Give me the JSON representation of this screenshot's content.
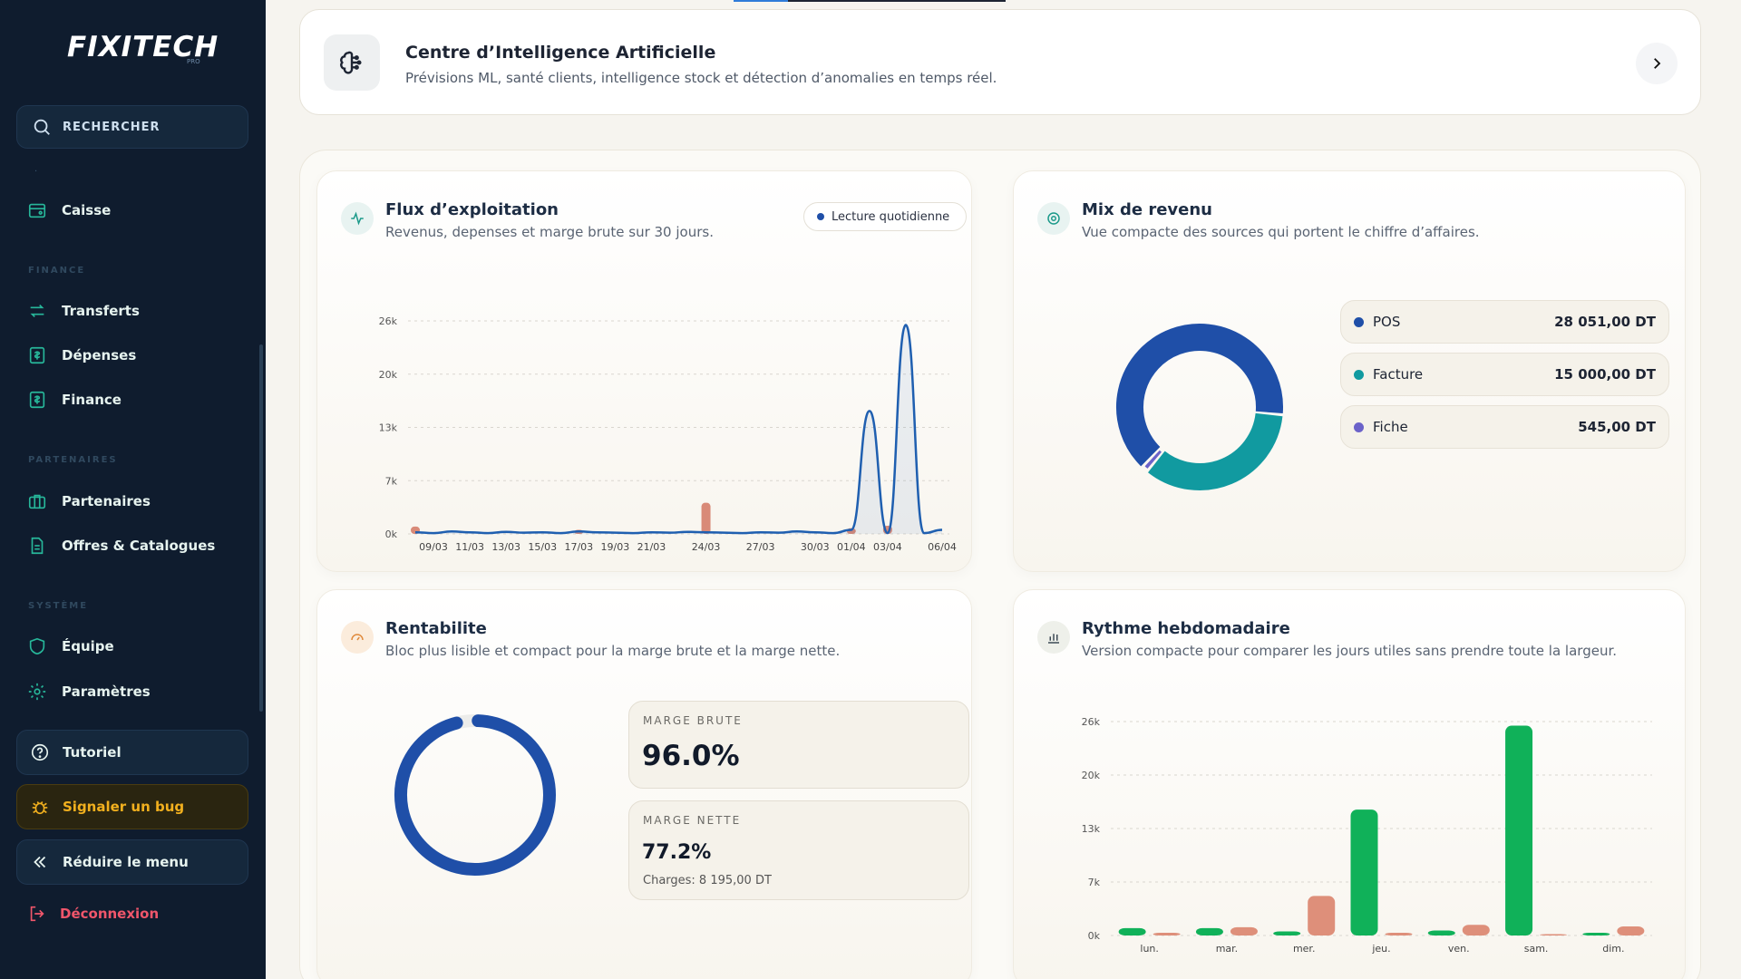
{
  "brand": {
    "name": "FIXITECH",
    "suffix": "PRO"
  },
  "sidebar": {
    "search_label": "RECHERCHER",
    "items": [
      {
        "label": "Caisse",
        "icon": "cash-register-icon"
      },
      {
        "section": "FINANCE"
      },
      {
        "label": "Transferts",
        "icon": "transfer-icon"
      },
      {
        "label": "Dépenses",
        "icon": "expense-icon"
      },
      {
        "label": "Finance",
        "icon": "finance-icon"
      },
      {
        "section": "PARTENAIRES"
      },
      {
        "label": "Partenaires",
        "icon": "briefcase-icon"
      },
      {
        "label": "Offres & Catalogues",
        "icon": "document-icon"
      },
      {
        "section": "SYSTÈME"
      },
      {
        "label": "Équipe",
        "icon": "shield-icon"
      },
      {
        "label": "Paramètres",
        "icon": "gear-icon"
      }
    ],
    "tutorial": "Tutoriel",
    "bug": "Signaler un bug",
    "collapse": "Réduire le menu",
    "logout": "Déconnexion"
  },
  "ai_center": {
    "title": "Centre d’Intelligence Artificielle",
    "subtitle": "Prévisions ML, santé clients, intelligence stock et détection d’anomalies en temps réel."
  },
  "flux": {
    "title": "Flux d’exploitation",
    "subtitle": "Revenus, depenses et marge brute sur 30 jours.",
    "badge": "Lecture quotidienne"
  },
  "mix": {
    "title": "Mix de revenu",
    "subtitle": "Vue compacte des sources qui portent le chiffre d’affaires.",
    "legend": [
      {
        "name": "POS",
        "value": "28 051,00 DT",
        "color": "#1f4fa8"
      },
      {
        "name": "Facture",
        "value": "15 000,00 DT",
        "color": "#119aa0"
      },
      {
        "name": "Fiche",
        "value": "545,00 DT",
        "color": "#6b62c9"
      }
    ]
  },
  "rentabilite": {
    "title": "Rentabilite",
    "subtitle": "Bloc plus lisible et compact pour la marge brute et la marge nette.",
    "marge_brute_label": "MARGE BRUTE",
    "marge_brute_value": "96.0%",
    "marge_nette_label": "MARGE NETTE",
    "marge_nette_value": "77.2%",
    "charges": "Charges: 8 195,00 DT",
    "ring_fraction": 0.96
  },
  "rythme": {
    "title": "Rythme hebdomadaire",
    "subtitle": "Version compacte pour comparer les jours utiles sans prendre toute la largeur."
  },
  "chart_data": [
    {
      "type": "line",
      "title": "Flux d’exploitation",
      "x_ticks": [
        "09/03",
        "11/03",
        "13/03",
        "15/03",
        "17/03",
        "19/03",
        "21/03",
        "24/03",
        "27/03",
        "30/03",
        "01/04",
        "03/04",
        "06/04"
      ],
      "y_ticks": [
        "0k",
        "7k",
        "13k",
        "20k",
        "26k"
      ],
      "ylim": [
        0,
        26000
      ],
      "dates": [
        "08/03",
        "09/03",
        "10/03",
        "11/03",
        "12/03",
        "13/03",
        "14/03",
        "15/03",
        "16/03",
        "17/03",
        "18/03",
        "19/03",
        "20/03",
        "21/03",
        "22/03",
        "23/03",
        "24/03",
        "25/03",
        "26/03",
        "27/03",
        "28/03",
        "29/03",
        "30/03",
        "31/03",
        "01/04",
        "02/04",
        "03/04",
        "04/04",
        "05/04",
        "06/04"
      ],
      "series": [
        {
          "kind": "line",
          "color": "#1f5fb0",
          "values": [
            200,
            100,
            300,
            200,
            100,
            250,
            150,
            200,
            100,
            300,
            200,
            150,
            100,
            200,
            150,
            250,
            200,
            150,
            100,
            200,
            150,
            300,
            200,
            100,
            500,
            15000,
            100,
            25500,
            100,
            500
          ]
        },
        {
          "kind": "bar",
          "color": "#d98a78",
          "values": [
            900,
            0,
            0,
            0,
            0,
            0,
            0,
            0,
            0,
            500,
            0,
            0,
            0,
            0,
            0,
            0,
            3800,
            0,
            0,
            0,
            0,
            0,
            0,
            0,
            700,
            0,
            1000,
            0,
            0,
            0
          ]
        }
      ]
    },
    {
      "type": "pie",
      "title": "Mix de revenu",
      "labels": [
        "POS",
        "Facture",
        "Fiche"
      ],
      "values": [
        28051,
        15000,
        545
      ],
      "colors": [
        "#1f4fa8",
        "#119aa0",
        "#6b62c9"
      ]
    },
    {
      "type": "bar",
      "title": "Rythme hebdomadaire",
      "categories": [
        "lun.",
        "mar.",
        "mer.",
        "jeu.",
        "ven.",
        "sam.",
        "dim."
      ],
      "y_ticks": [
        "0k",
        "7k",
        "13k",
        "20k",
        "26k"
      ],
      "ylim": [
        0,
        26000
      ],
      "series": [
        {
          "color": "#10b159",
          "values": [
            900,
            900,
            500,
            15300,
            600,
            25500,
            200
          ]
        },
        {
          "color": "#de8f7a",
          "values": [
            100,
            1000,
            4800,
            100,
            1300,
            0,
            1100
          ]
        }
      ]
    }
  ]
}
